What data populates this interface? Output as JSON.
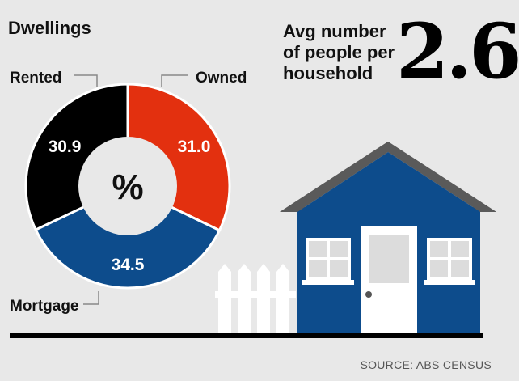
{
  "colors": {
    "background": "#e8e8e8",
    "owned": "#e3300f",
    "mortgage": "#0d4c8c",
    "rented": "#000000",
    "roof": "#5a5a5a",
    "house": "#0d4c8c",
    "ground": "#000000"
  },
  "chart_data": {
    "type": "pie",
    "title": "Dwellings",
    "center_label": "%",
    "slices": [
      {
        "label": "Owned",
        "value": 31.0,
        "value_text": "31.0",
        "color": "#e3300f"
      },
      {
        "label": "Mortgage",
        "value": 34.5,
        "value_text": "34.5",
        "color": "#0d4c8c"
      },
      {
        "label": "Rented",
        "value": 30.9,
        "value_text": "30.9",
        "color": "#000000"
      }
    ]
  },
  "stat": {
    "label": "Avg number of people per household",
    "value": "2.6"
  },
  "source": "SOURCE: ABS CENSUS",
  "icons": [
    "house-icon",
    "picket-fence-icon"
  ]
}
